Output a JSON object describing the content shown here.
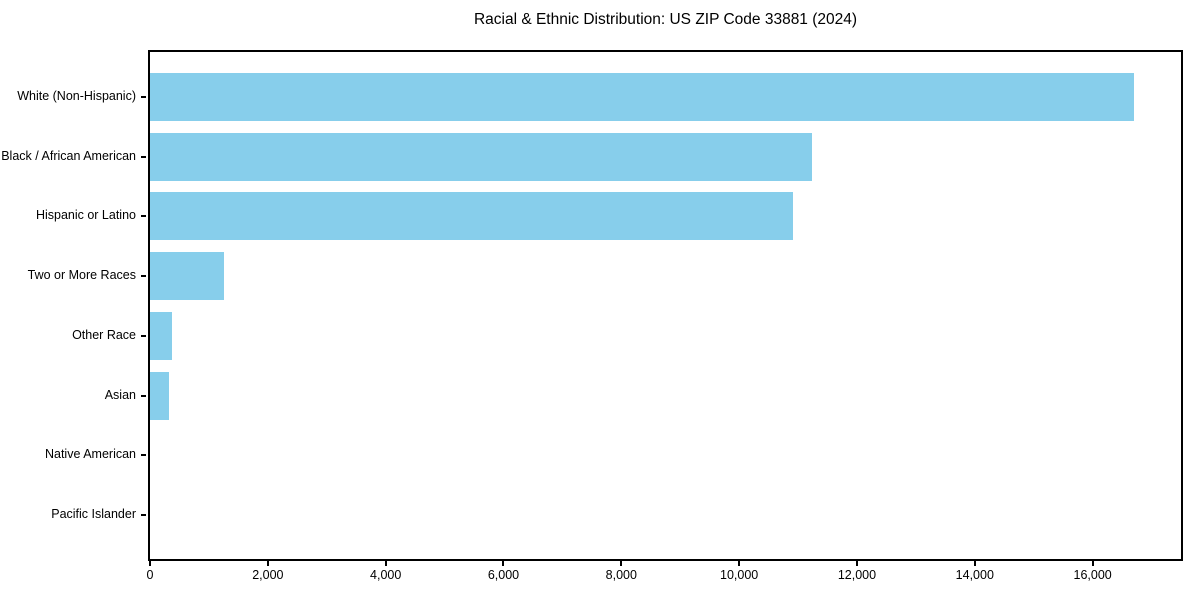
{
  "title": "Racial & Ethnic Distribution: US ZIP Code 33881 (2024)",
  "chart_data": {
    "type": "bar",
    "orientation": "horizontal",
    "title": "Racial & Ethnic Distribution: US ZIP Code 33881 (2024)",
    "categories": [
      "White (Non-Hispanic)",
      "Black / African American",
      "Hispanic or Latino",
      "Two or More Races",
      "Other Race",
      "Asian",
      "Native American",
      "Pacific Islander"
    ],
    "values": [
      16700,
      11240,
      10910,
      1260,
      370,
      315,
      0,
      0
    ],
    "x_ticks": [
      0,
      2000,
      4000,
      6000,
      8000,
      10000,
      12000,
      14000,
      16000
    ],
    "x_tick_labels": [
      "0",
      "2,000",
      "4,000",
      "6,000",
      "8,000",
      "10,000",
      "12,000",
      "14,000",
      "16,000"
    ],
    "xlim": [
      0,
      17500
    ],
    "xlabel": "",
    "ylabel": "",
    "grid": false,
    "legend": false,
    "bar_color": "#87CEEB",
    "frame_color": "#000000",
    "text_color": "#000000",
    "background_color": "#ffffff"
  }
}
